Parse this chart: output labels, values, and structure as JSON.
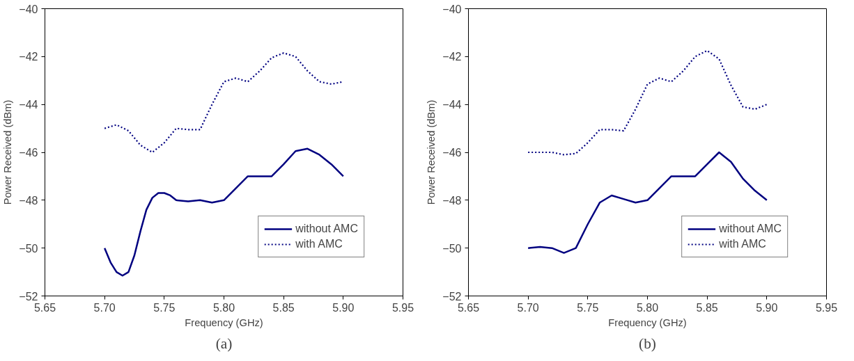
{
  "chart_data": [
    {
      "type": "line",
      "xlabel": "Frequency (GHz)",
      "ylabel": "Power Received (dBm)",
      "annotations": [
        "(a)"
      ],
      "legend": "bottom right",
      "grid": false,
      "marker": "none",
      "xlim": [
        5.65,
        5.95
      ],
      "ylim": [
        -52,
        -40
      ],
      "xticks": [
        {
          "value": 5.65,
          "label": "5.65"
        },
        {
          "value": 5.7,
          "label": "5.70"
        },
        {
          "value": 5.75,
          "label": "5.75"
        },
        {
          "value": 5.8,
          "label": "5.80"
        },
        {
          "value": 5.85,
          "label": "5.85"
        },
        {
          "value": 5.9,
          "label": "5.90"
        },
        {
          "value": 5.95,
          "label": "5.95"
        }
      ],
      "yticks": [
        -52,
        -50,
        -48,
        -46,
        -44,
        -42,
        -40
      ],
      "series": [
        {
          "name": "without AMC",
          "color": "#000080",
          "line_style": "solid",
          "x": [
            5.7,
            5.705,
            5.71,
            5.715,
            5.72,
            5.725,
            5.73,
            5.735,
            5.74,
            5.745,
            5.75,
            5.755,
            5.76,
            5.77,
            5.78,
            5.79,
            5.8,
            5.81,
            5.82,
            5.83,
            5.84,
            5.85,
            5.86,
            5.87,
            5.88,
            5.89,
            5.9
          ],
          "values": [
            -50,
            -50.6,
            -51.0,
            -51.15,
            -51.0,
            -50.3,
            -49.3,
            -48.4,
            -47.9,
            -47.7,
            -47.7,
            -47.8,
            -48.0,
            -48.05,
            -48.0,
            -48.1,
            -48.0,
            -47.5,
            -47.0,
            -47.0,
            -47.0,
            -46.5,
            -45.95,
            -45.85,
            -46.1,
            -46.5,
            -47.0
          ]
        },
        {
          "name": "with AMC",
          "color": "#000080",
          "line_style": "dotted",
          "x": [
            5.7,
            5.71,
            5.72,
            5.73,
            5.74,
            5.75,
            5.76,
            5.77,
            5.78,
            5.79,
            5.8,
            5.81,
            5.82,
            5.83,
            5.84,
            5.85,
            5.86,
            5.87,
            5.88,
            5.89,
            5.9
          ],
          "values": [
            -45,
            -44.85,
            -45.1,
            -45.7,
            -46.0,
            -45.6,
            -45.0,
            -45.05,
            -45.05,
            -44.0,
            -43.05,
            -42.9,
            -43.05,
            -42.6,
            -42.05,
            -41.85,
            -42.0,
            -42.6,
            -43.05,
            -43.15,
            -43.05
          ]
        }
      ]
    },
    {
      "type": "line",
      "xlabel": "Frequency (GHz)",
      "ylabel": "Power Received (dBm)",
      "annotations": [
        "(b)"
      ],
      "legend": "bottom right",
      "grid": false,
      "marker": "none",
      "xlim": [
        5.65,
        5.95
      ],
      "ylim": [
        -52,
        -40
      ],
      "xticks": [
        {
          "value": 5.65,
          "label": "5.65"
        },
        {
          "value": 5.7,
          "label": "5.70"
        },
        {
          "value": 5.75,
          "label": "5.75"
        },
        {
          "value": 5.8,
          "label": "5.80"
        },
        {
          "value": 5.85,
          "label": "5.85"
        },
        {
          "value": 5.9,
          "label": "5.90"
        },
        {
          "value": 5.95,
          "label": "5.95"
        }
      ],
      "yticks": [
        -52,
        -50,
        -48,
        -46,
        -44,
        -42,
        -40
      ],
      "series": [
        {
          "name": "without AMC",
          "color": "#000080",
          "line_style": "solid",
          "x": [
            5.7,
            5.71,
            5.72,
            5.73,
            5.74,
            5.75,
            5.76,
            5.77,
            5.78,
            5.79,
            5.8,
            5.81,
            5.82,
            5.83,
            5.84,
            5.85,
            5.86,
            5.87,
            5.88,
            5.89,
            5.9
          ],
          "values": [
            -50,
            -49.95,
            -50.0,
            -50.2,
            -50.0,
            -49.0,
            -48.1,
            -47.8,
            -47.95,
            -48.1,
            -48.0,
            -47.5,
            -47.0,
            -47.0,
            -47.0,
            -46.5,
            -46.0,
            -46.4,
            -47.1,
            -47.6,
            -48.0
          ]
        },
        {
          "name": "with AMC",
          "color": "#000080",
          "line_style": "dotted",
          "x": [
            5.7,
            5.71,
            5.72,
            5.73,
            5.74,
            5.75,
            5.76,
            5.77,
            5.78,
            5.79,
            5.8,
            5.81,
            5.82,
            5.83,
            5.84,
            5.85,
            5.86,
            5.87,
            5.88,
            5.89,
            5.9
          ],
          "values": [
            -46,
            -46.0,
            -46.0,
            -46.1,
            -46.05,
            -45.6,
            -45.05,
            -45.05,
            -45.1,
            -44.2,
            -43.15,
            -42.9,
            -43.05,
            -42.6,
            -42.0,
            -41.75,
            -42.1,
            -43.2,
            -44.1,
            -44.2,
            -44.0
          ]
        }
      ]
    }
  ]
}
